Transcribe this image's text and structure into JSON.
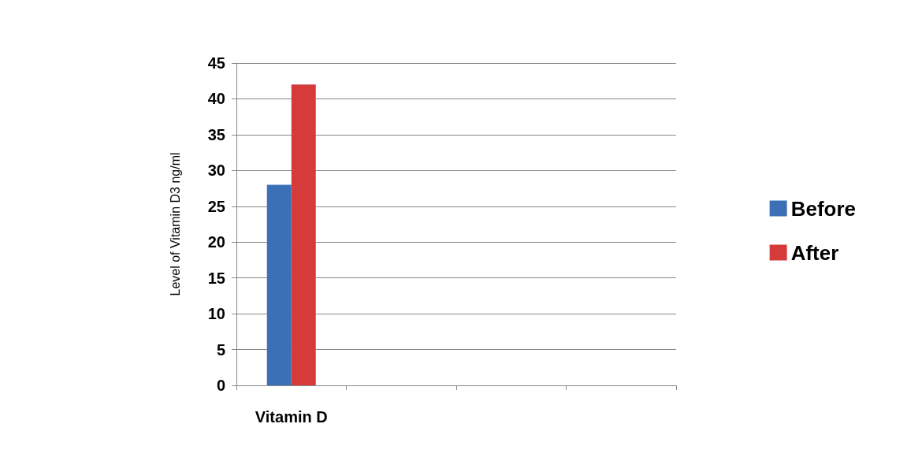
{
  "chart_data": {
    "type": "bar",
    "ylabel": "Level of Vitamin D3 ng/ml",
    "categories": [
      "Vitamin D",
      null,
      null,
      null
    ],
    "series": [
      {
        "name": "Before",
        "color": "#3b6fb6",
        "values": [
          28,
          null,
          null,
          null
        ]
      },
      {
        "name": "After",
        "color": "#d63b3b",
        "values": [
          42,
          null,
          null,
          null
        ]
      }
    ],
    "ylim": [
      0,
      45
    ],
    "yticks": [
      0,
      5,
      10,
      15,
      20,
      25,
      30,
      35,
      40,
      45
    ],
    "grid": "y",
    "legend": "right"
  }
}
